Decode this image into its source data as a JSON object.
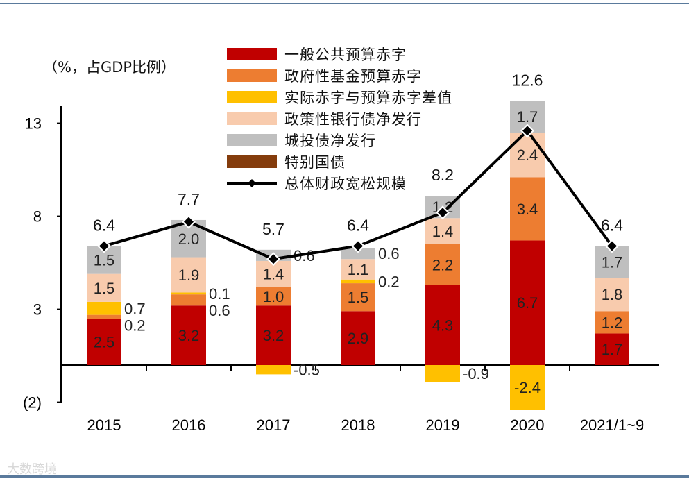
{
  "chart_data": {
    "type": "bar",
    "subtype": "stacked bar with line",
    "ylabel": "（%，占GDP比例）",
    "ylim": [
      -2,
      15
    ],
    "yticks": [
      13,
      8,
      3,
      -2
    ],
    "ytick_labels": [
      "13",
      "8",
      "3",
      "(2)"
    ],
    "categories": [
      "2015",
      "2016",
      "2017",
      "2018",
      "2019",
      "2020",
      "2021/1~9"
    ],
    "series": [
      {
        "name": "一般公共预算赤字",
        "color": "#c00000",
        "values": [
          2.5,
          3.2,
          3.2,
          2.9,
          4.3,
          6.7,
          1.7
        ]
      },
      {
        "name": "政府性基金预算赤字",
        "color": "#ed7d31",
        "values": [
          0.2,
          0.6,
          1.0,
          1.5,
          2.2,
          3.4,
          1.2
        ]
      },
      {
        "name": "实际赤字与预算赤字差值",
        "color": "#ffc000",
        "values": [
          0.7,
          0.1,
          -0.5,
          0.2,
          -0.9,
          -2.4,
          null
        ]
      },
      {
        "name": "政策性银行债净发行",
        "color": "#f8cbad",
        "values": [
          1.5,
          1.9,
          1.4,
          1.1,
          1.4,
          2.4,
          1.8
        ]
      },
      {
        "name": "城投债净发行",
        "color": "#bfbfbf",
        "values": [
          1.5,
          2.0,
          0.6,
          0.6,
          1.2,
          1.7,
          1.7
        ]
      },
      {
        "name": "特别国债",
        "color": "#843c0c",
        "values": [
          null,
          null,
          null,
          null,
          null,
          null,
          null
        ]
      }
    ],
    "line": {
      "name": "总体财政宽松规模",
      "color": "#000000",
      "values": [
        6.4,
        7.7,
        5.7,
        6.4,
        8.2,
        12.6,
        6.4
      ]
    },
    "legend": "top-center",
    "grid": false
  },
  "watermark": "大数跨境"
}
